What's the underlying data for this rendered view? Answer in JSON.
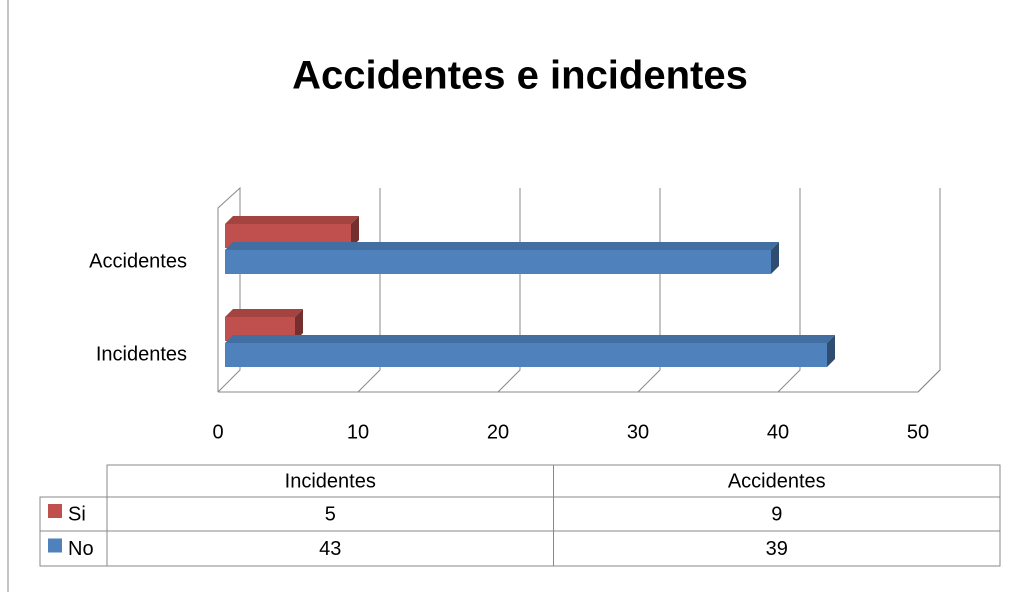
{
  "chart_data": {
    "type": "bar3d_horizontal",
    "title": "Accidentes e incidentes",
    "categories": [
      "Incidentes",
      "Accidentes"
    ],
    "series": [
      {
        "name": "Si",
        "color": "#c0504d",
        "values": [
          5,
          9
        ]
      },
      {
        "name": "No",
        "color": "#4f81bd",
        "values": [
          43,
          39
        ]
      }
    ],
    "xlim": [
      0,
      50
    ],
    "xticks": [
      0,
      10,
      20,
      30,
      40,
      50
    ],
    "grid": true,
    "data_table": true
  }
}
